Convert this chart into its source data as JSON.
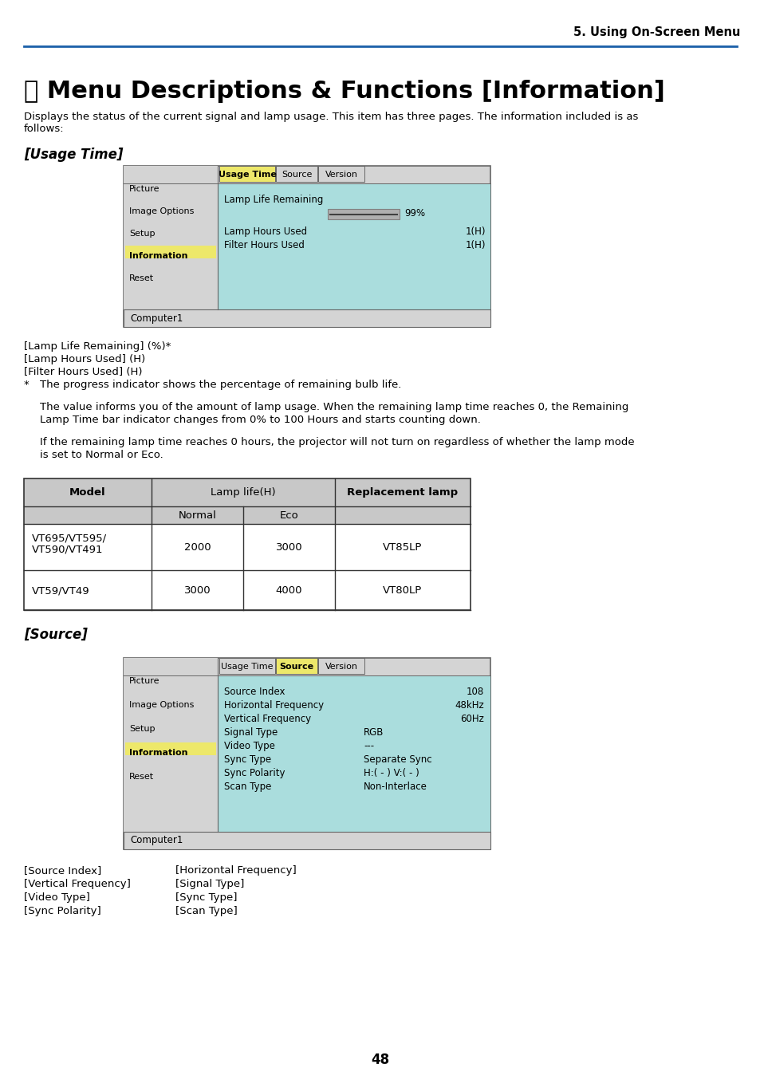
{
  "page_header": "5. Using On-Screen Menu",
  "section_title": "⑗ Menu Descriptions & Functions [Information]",
  "section_intro_line1": "Displays the status of the current signal and lamp usage. This item has three pages. The information included is as",
  "section_intro_line2": "follows:",
  "usage_time_heading": "[Usage Time]",
  "source_heading": "[Source]",
  "screen1_menu_items": [
    "Picture",
    "Image Options",
    "Setup",
    "Information",
    "Reset"
  ],
  "screen1_selected": "Information",
  "screen1_tabs": [
    "Usage Time",
    "Source",
    "Version"
  ],
  "screen1_active_tab": "Usage Time",
  "screen1_footer": "Computer1",
  "screen2_menu_items": [
    "Picture",
    "Image Options",
    "Setup",
    "Information",
    "Reset"
  ],
  "screen2_selected": "Information",
  "screen2_tabs": [
    "Usage Time",
    "Source",
    "Version"
  ],
  "screen2_active_tab": "Source",
  "screen2_content": [
    [
      "Source Index",
      "",
      "108"
    ],
    [
      "Horizontal Frequency",
      "",
      "48kHz"
    ],
    [
      "Vertical Frequency",
      "",
      "60Hz"
    ],
    [
      "Signal Type",
      "RGB",
      ""
    ],
    [
      "Video Type",
      "---",
      ""
    ],
    [
      "Sync Type",
      "Separate Sync",
      ""
    ],
    [
      "Sync Polarity",
      "H:( - ) V:( - )",
      ""
    ],
    [
      "Scan Type",
      "Non-Interlace",
      ""
    ]
  ],
  "screen2_footer": "Computer1",
  "list_items_under_usage": [
    "[Lamp Life Remaining] (%)*",
    "[Lamp Hours Used] (H)",
    "[Filter Hours Used] (H)"
  ],
  "asterisk_note": "The progress indicator shows the percentage of remaining bulb life.",
  "para1_line1": "The value informs you of the amount of lamp usage. When the remaining lamp time reaches 0, the Remaining",
  "para1_line2": "Lamp Time bar indicator changes from 0% to 100 Hours and starts counting down.",
  "para2_line1": "If the remaining lamp time reaches 0 hours, the projector will not turn on regardless of whether the lamp mode",
  "para2_line2": "is set to Normal or Eco.",
  "table_header_col1": "Model",
  "table_header_col2": "Lamp life(H)",
  "table_header_col2a": "Normal",
  "table_header_col2b": "Eco",
  "table_header_col3": "Replacement lamp",
  "table_rows": [
    [
      "VT695/VT595/",
      "VT590/VT491",
      "2000",
      "3000",
      "VT85LP"
    ],
    [
      "VT59/VT49",
      "",
      "3000",
      "4000",
      "VT80LP"
    ]
  ],
  "source_list_col1": [
    "[Source Index]",
    "[Vertical Frequency]",
    "[Video Type]",
    "[Sync Polarity]"
  ],
  "source_list_col2": [
    "[Horizontal Frequency]",
    "[Signal Type]",
    "[Sync Type]",
    "[Scan Type]"
  ],
  "page_number": "48",
  "bg_color": "#ffffff",
  "header_line_color": "#1a5fa8",
  "menu_bg": "#d4d4d4",
  "menu_selected_bg": "#ede86a",
  "content_bg": "#aadddd",
  "tab_active_bg": "#ede86a",
  "tab_inactive_bg": "#d4d4d4",
  "screen_outer_bg": "#d4d4d4",
  "screen_border": "#666666",
  "footer_bg": "#d4d4d4",
  "table_header_bg": "#c8c8c8",
  "table_border": "#333333"
}
